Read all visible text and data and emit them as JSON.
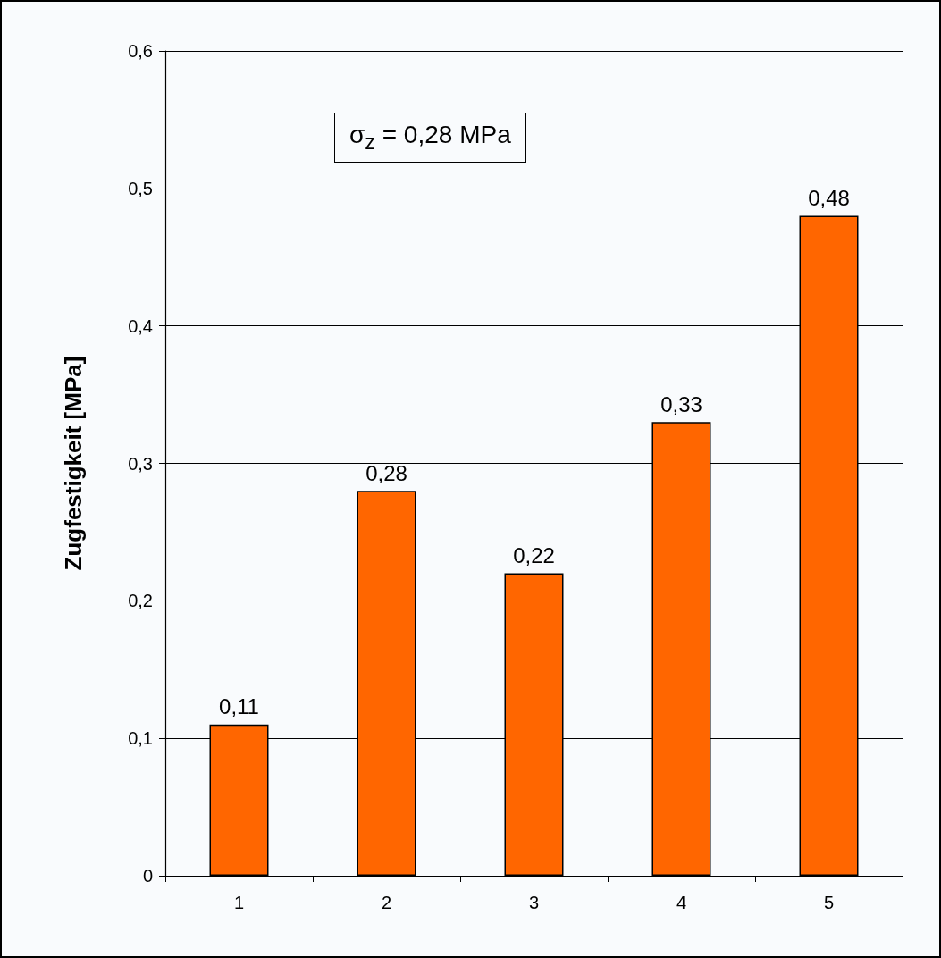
{
  "chart_data": {
    "type": "bar",
    "ylabel": "Zugfestigkeit [MPa]",
    "categories": [
      "1",
      "2",
      "3",
      "4",
      "5"
    ],
    "values": [
      0.11,
      0.28,
      0.22,
      0.33,
      0.48
    ],
    "value_labels": [
      "0,11",
      "0,28",
      "0,22",
      "0,33",
      "0,48"
    ],
    "color": "#ff6600",
    "ylim": [
      0,
      0.6
    ],
    "yticks": [
      0,
      {
        "value": 0.1,
        "label": "0,1"
      },
      {
        "value": 0.2,
        "label": "0,2"
      },
      {
        "value": 0.3,
        "label": "0,3"
      },
      {
        "value": 0.4,
        "label": "0,4"
      },
      {
        "value": 0.5,
        "label": "0,5"
      },
      {
        "value": 0.6,
        "label": "0,6"
      }
    ],
    "grid": "y",
    "annotations": [
      "σ$_{z}$ = 0,28 MPa"
    ]
  }
}
